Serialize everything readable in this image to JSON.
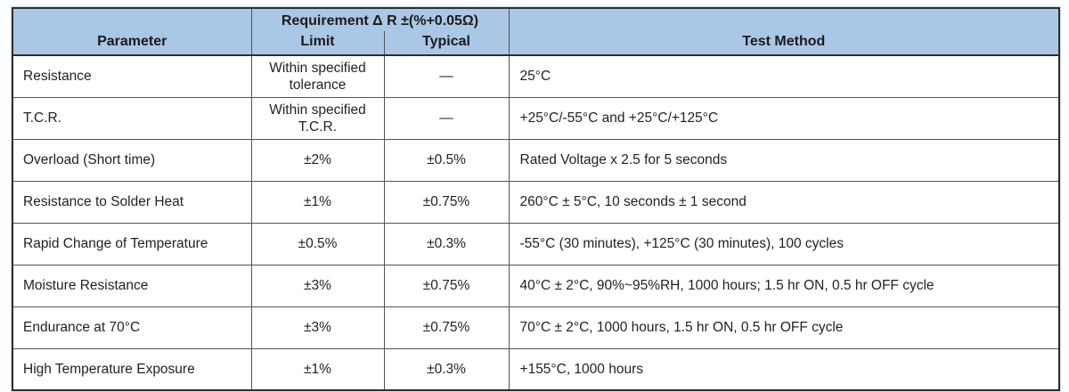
{
  "header": {
    "parameter": "Parameter",
    "requirement_group": "Requirement Δ R ±(%+0.05Ω)",
    "limit": "Limit",
    "typical": "Typical",
    "test_method": "Test Method"
  },
  "rows": [
    {
      "parameter": "Resistance",
      "limit": "Within specified tolerance",
      "typical": "—",
      "test_method": "25°C"
    },
    {
      "parameter": "T.C.R.",
      "limit": "Within specified T.C.R.",
      "typical": "—",
      "test_method": "+25°C/-55°C and +25°C/+125°C"
    },
    {
      "parameter": "Overload (Short time)",
      "limit": "±2%",
      "typical": "±0.5%",
      "test_method": "Rated Voltage x 2.5 for 5 seconds"
    },
    {
      "parameter": "Resistance to Solder Heat",
      "limit": "±1%",
      "typical": "±0.75%",
      "test_method": "260°C ± 5°C, 10 seconds ± 1 second"
    },
    {
      "parameter": "Rapid Change of Temperature",
      "limit": "±0.5%",
      "typical": "±0.3%",
      "test_method": "-55°C (30 minutes), +125°C (30 minutes), 100 cycles"
    },
    {
      "parameter": "Moisture Resistance",
      "limit": "±3%",
      "typical": "±0.75%",
      "test_method": "40°C ± 2°C, 90%~95%RH, 1000 hours; 1.5 hr ON, 0.5 hr OFF cycle"
    },
    {
      "parameter": "Endurance at 70°C",
      "limit": "±3%",
      "typical": "±0.75%",
      "test_method": "70°C ± 2°C, 1000 hours, 1.5 hr ON, 0.5 hr OFF cycle"
    },
    {
      "parameter": "High Temperature Exposure",
      "limit": "±1%",
      "typical": "±0.3%",
      "test_method": "+155°C, 1000 hours"
    }
  ],
  "colors": {
    "header_bg": "#abc7e6",
    "border_inner": "#525356",
    "border_outer": "#2c2d2f",
    "text": "#231f20"
  }
}
